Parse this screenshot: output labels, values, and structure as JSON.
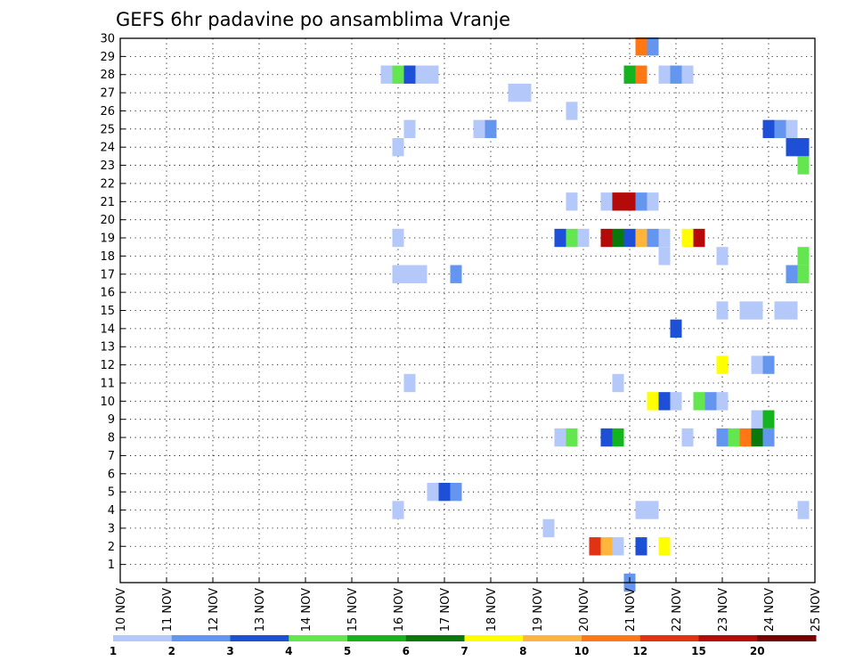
{
  "chart_data": {
    "type": "heatmap",
    "title": "GEFS 6hr padavine po ansamblima Vranje",
    "xlabel": "",
    "ylabel": "",
    "x_tick_labels": [
      "10 NOV",
      "11 NOV",
      "12 NOV",
      "13 NOV",
      "14 NOV",
      "15 NOV",
      "16 NOV",
      "17 NOV",
      "18 NOV",
      "19 NOV",
      "20 NOV",
      "21 NOV",
      "22 NOV",
      "23 NOV",
      "24 NOV",
      "25 NOV"
    ],
    "x_range_days": [
      10,
      25
    ],
    "y_range": [
      0,
      30
    ],
    "y_tick_labels": [
      "1",
      "2",
      "3",
      "4",
      "5",
      "6",
      "7",
      "8",
      "9",
      "10",
      "11",
      "12",
      "13",
      "14",
      "15",
      "16",
      "17",
      "18",
      "19",
      "20",
      "21",
      "22",
      "23",
      "24",
      "25",
      "26",
      "27",
      "28",
      "29",
      "30"
    ],
    "grid": true,
    "colorbar": {
      "colors": [
        "#b4c8fa",
        "#6496f0",
        "#1e50d7",
        "#64e650",
        "#14b41e",
        "#0a780a",
        "#ffff00",
        "#ffb43c",
        "#ff7814",
        "#e13214",
        "#b40a0a",
        "#780000"
      ],
      "labels": [
        "1",
        "2",
        "3",
        "4",
        "5",
        "6",
        "7",
        "8",
        "10",
        "12",
        "15",
        "20"
      ],
      "bounds": [
        1,
        2,
        3,
        4,
        5,
        6,
        7,
        8,
        10,
        12,
        15,
        20
      ]
    },
    "cells": [
      {
        "m": 30,
        "d": 21.25,
        "c": 8
      },
      {
        "m": 30,
        "d": 21.5,
        "c": 1
      },
      {
        "m": 28,
        "d": 15.75,
        "c": 0
      },
      {
        "m": 28,
        "d": 16.0,
        "c": 3
      },
      {
        "m": 28,
        "d": 16.25,
        "c": 2
      },
      {
        "m": 28,
        "d": 16.5,
        "c": 0
      },
      {
        "m": 28,
        "d": 16.75,
        "c": 0
      },
      {
        "m": 28,
        "d": 21.0,
        "c": 4
      },
      {
        "m": 28,
        "d": 21.25,
        "c": 8
      },
      {
        "m": 28,
        "d": 21.75,
        "c": 0
      },
      {
        "m": 28,
        "d": 22.0,
        "c": 1
      },
      {
        "m": 28,
        "d": 22.25,
        "c": 0
      },
      {
        "m": 27,
        "d": 18.5,
        "c": 0
      },
      {
        "m": 27,
        "d": 18.75,
        "c": 0
      },
      {
        "m": 26,
        "d": 19.75,
        "c": 0
      },
      {
        "m": 25,
        "d": 16.25,
        "c": 0
      },
      {
        "m": 25,
        "d": 17.75,
        "c": 0
      },
      {
        "m": 25,
        "d": 18.0,
        "c": 1
      },
      {
        "m": 25,
        "d": 24.0,
        "c": 2
      },
      {
        "m": 25,
        "d": 24.25,
        "c": 1
      },
      {
        "m": 25,
        "d": 24.5,
        "c": 0
      },
      {
        "m": 24,
        "d": 16.0,
        "c": 0
      },
      {
        "m": 24,
        "d": 24.5,
        "c": 2
      },
      {
        "m": 24,
        "d": 24.75,
        "c": 2
      },
      {
        "m": 23,
        "d": 24.75,
        "c": 3
      },
      {
        "m": 21,
        "d": 19.75,
        "c": 0
      },
      {
        "m": 21,
        "d": 20.5,
        "c": 0
      },
      {
        "m": 21,
        "d": 20.75,
        "c": 10
      },
      {
        "m": 21,
        "d": 21.0,
        "c": 10
      },
      {
        "m": 21,
        "d": 21.25,
        "c": 1
      },
      {
        "m": 21,
        "d": 21.5,
        "c": 0
      },
      {
        "m": 19,
        "d": 16.0,
        "c": 0
      },
      {
        "m": 19,
        "d": 19.5,
        "c": 2
      },
      {
        "m": 19,
        "d": 19.75,
        "c": 3
      },
      {
        "m": 19,
        "d": 20.0,
        "c": 0
      },
      {
        "m": 19,
        "d": 20.5,
        "c": 10
      },
      {
        "m": 19,
        "d": 20.75,
        "c": 5
      },
      {
        "m": 19,
        "d": 21.0,
        "c": 2
      },
      {
        "m": 19,
        "d": 21.25,
        "c": 7
      },
      {
        "m": 19,
        "d": 21.5,
        "c": 1
      },
      {
        "m": 19,
        "d": 21.75,
        "c": 0
      },
      {
        "m": 19,
        "d": 22.25,
        "c": 6
      },
      {
        "m": 19,
        "d": 22.5,
        "c": 10
      },
      {
        "m": 18,
        "d": 21.75,
        "c": 0
      },
      {
        "m": 18,
        "d": 23.0,
        "c": 0
      },
      {
        "m": 18,
        "d": 24.75,
        "c": 3
      },
      {
        "m": 17,
        "d": 16.0,
        "c": 0
      },
      {
        "m": 17,
        "d": 16.25,
        "c": 0
      },
      {
        "m": 17,
        "d": 16.5,
        "c": 0
      },
      {
        "m": 17,
        "d": 17.25,
        "c": 1
      },
      {
        "m": 17,
        "d": 24.5,
        "c": 1
      },
      {
        "m": 17,
        "d": 24.75,
        "c": 3
      },
      {
        "m": 15,
        "d": 23.0,
        "c": 0
      },
      {
        "m": 15,
        "d": 23.5,
        "c": 0
      },
      {
        "m": 15,
        "d": 23.75,
        "c": 0
      },
      {
        "m": 15,
        "d": 24.25,
        "c": 0
      },
      {
        "m": 15,
        "d": 24.5,
        "c": 0
      },
      {
        "m": 14,
        "d": 22.0,
        "c": 2
      },
      {
        "m": 12,
        "d": 23.0,
        "c": 6
      },
      {
        "m": 12,
        "d": 23.75,
        "c": 0
      },
      {
        "m": 12,
        "d": 24.0,
        "c": 1
      },
      {
        "m": 11,
        "d": 16.25,
        "c": 0
      },
      {
        "m": 11,
        "d": 20.75,
        "c": 0
      },
      {
        "m": 10,
        "d": 21.5,
        "c": 6
      },
      {
        "m": 10,
        "d": 21.75,
        "c": 2
      },
      {
        "m": 10,
        "d": 22.0,
        "c": 0
      },
      {
        "m": 10,
        "d": 22.5,
        "c": 3
      },
      {
        "m": 10,
        "d": 22.75,
        "c": 1
      },
      {
        "m": 10,
        "d": 23.0,
        "c": 0
      },
      {
        "m": 9,
        "d": 23.75,
        "c": 0
      },
      {
        "m": 9,
        "d": 24.0,
        "c": 4
      },
      {
        "m": 8,
        "d": 19.5,
        "c": 0
      },
      {
        "m": 8,
        "d": 19.75,
        "c": 3
      },
      {
        "m": 8,
        "d": 20.5,
        "c": 2
      },
      {
        "m": 8,
        "d": 20.75,
        "c": 4
      },
      {
        "m": 8,
        "d": 22.25,
        "c": 0
      },
      {
        "m": 8,
        "d": 23.0,
        "c": 1
      },
      {
        "m": 8,
        "d": 23.25,
        "c": 3
      },
      {
        "m": 8,
        "d": 23.5,
        "c": 8
      },
      {
        "m": 8,
        "d": 23.75,
        "c": 5
      },
      {
        "m": 8,
        "d": 24.0,
        "c": 1
      },
      {
        "m": 5,
        "d": 16.75,
        "c": 0
      },
      {
        "m": 5,
        "d": 17.0,
        "c": 2
      },
      {
        "m": 5,
        "d": 17.25,
        "c": 1
      },
      {
        "m": 4,
        "d": 16.0,
        "c": 0
      },
      {
        "m": 4,
        "d": 21.25,
        "c": 0
      },
      {
        "m": 4,
        "d": 21.5,
        "c": 0
      },
      {
        "m": 4,
        "d": 24.75,
        "c": 0
      },
      {
        "m": 3,
        "d": 19.25,
        "c": 0
      },
      {
        "m": 2,
        "d": 20.25,
        "c": 9
      },
      {
        "m": 2,
        "d": 20.5,
        "c": 7
      },
      {
        "m": 2,
        "d": 20.75,
        "c": 0
      },
      {
        "m": 2,
        "d": 21.25,
        "c": 2
      },
      {
        "m": 2,
        "d": 21.75,
        "c": 6
      },
      {
        "m": 0,
        "d": 21.0,
        "c": 1
      }
    ]
  }
}
